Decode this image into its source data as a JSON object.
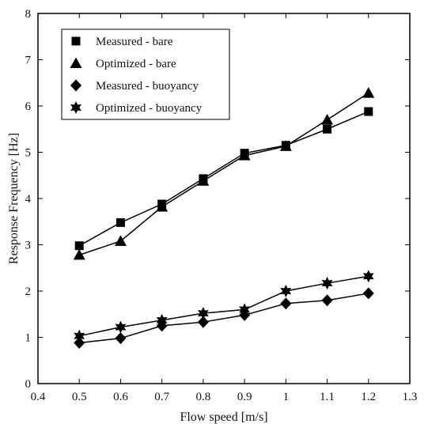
{
  "chart_data": {
    "type": "line",
    "xlabel": "Flow speed [m/s]",
    "ylabel": "Response Frequency [Hz]",
    "xlim": [
      0.4,
      1.3
    ],
    "ylim": [
      0,
      8
    ],
    "x_ticks": [
      0.4,
      0.5,
      0.6,
      0.7,
      0.8,
      0.9,
      1.0,
      1.1,
      1.2,
      1.3
    ],
    "x_tick_labels": [
      "0.4",
      "0.5",
      "0.6",
      "0.7",
      "0.8",
      "0.9",
      "1",
      "1.1",
      "1.2",
      "1.3"
    ],
    "y_ticks": [
      0,
      1,
      2,
      3,
      4,
      5,
      6,
      7,
      8
    ],
    "y_tick_labels": [
      "0",
      "1",
      "2",
      "3",
      "4",
      "5",
      "6",
      "7",
      "8"
    ],
    "grid": false,
    "legend_position": "top-left",
    "x": [
      0.5,
      0.6,
      0.7,
      0.8,
      0.9,
      1.0,
      1.1,
      1.2
    ],
    "series": [
      {
        "name": "Measured - bare",
        "marker": "square",
        "values": [
          2.98,
          3.48,
          3.88,
          4.43,
          4.98,
          5.15,
          5.5,
          5.88
        ]
      },
      {
        "name": "Optimized - bare",
        "marker": "triangle",
        "values": [
          2.78,
          3.08,
          3.82,
          4.38,
          4.93,
          5.13,
          5.7,
          6.28
        ]
      },
      {
        "name": "Measured - buoyancy",
        "marker": "diamond",
        "values": [
          0.88,
          0.98,
          1.25,
          1.33,
          1.48,
          1.73,
          1.8,
          1.95
        ]
      },
      {
        "name": "Optimized - buoyancy",
        "marker": "star",
        "values": [
          1.03,
          1.22,
          1.37,
          1.52,
          1.6,
          2.0,
          2.17,
          2.32
        ]
      }
    ]
  }
}
